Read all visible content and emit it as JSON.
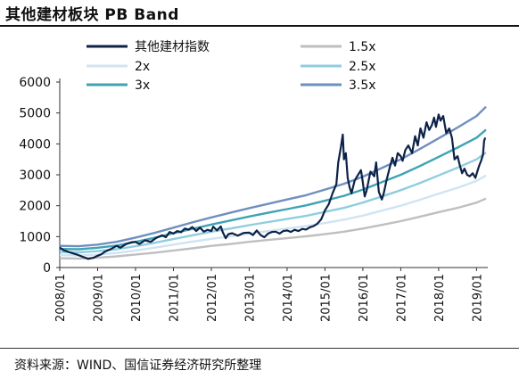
{
  "title": "其他建材板块 PB Band",
  "source": "资料来源：WIND、国信证券经济研究所整理",
  "chart_data": {
    "type": "line",
    "title": "其他建材板块 PB Band",
    "xlabel": "",
    "ylabel": "",
    "x_range": [
      2008.0,
      2019.25
    ],
    "ylim": [
      0,
      6000
    ],
    "yticks": [
      0,
      1000,
      2000,
      3000,
      4000,
      5000,
      6000
    ],
    "xticks": [
      "2008/01",
      "2009/01",
      "2010/01",
      "2011/01",
      "2012/01",
      "2013/01",
      "2014/01",
      "2015/01",
      "2016/01",
      "2017/01",
      "2018/01",
      "2019/01"
    ],
    "grid": false,
    "legend_position": "top",
    "series": [
      {
        "name": "其他建材指数",
        "color": "#0d2248",
        "width": 2.2,
        "points": [
          [
            2008.0,
            650
          ],
          [
            2008.1,
            560
          ],
          [
            2008.2,
            520
          ],
          [
            2008.3,
            480
          ],
          [
            2008.45,
            420
          ],
          [
            2008.6,
            350
          ],
          [
            2008.75,
            280
          ],
          [
            2008.9,
            320
          ],
          [
            2009.0,
            380
          ],
          [
            2009.1,
            430
          ],
          [
            2009.2,
            520
          ],
          [
            2009.35,
            600
          ],
          [
            2009.5,
            700
          ],
          [
            2009.6,
            640
          ],
          [
            2009.75,
            760
          ],
          [
            2009.9,
            820
          ],
          [
            2010.0,
            830
          ],
          [
            2010.1,
            760
          ],
          [
            2010.25,
            880
          ],
          [
            2010.4,
            830
          ],
          [
            2010.55,
            960
          ],
          [
            2010.7,
            1040
          ],
          [
            2010.8,
            980
          ],
          [
            2010.9,
            1150
          ],
          [
            2011.0,
            1100
          ],
          [
            2011.1,
            1180
          ],
          [
            2011.2,
            1140
          ],
          [
            2011.3,
            1260
          ],
          [
            2011.4,
            1230
          ],
          [
            2011.5,
            1310
          ],
          [
            2011.6,
            1180
          ],
          [
            2011.7,
            1290
          ],
          [
            2011.8,
            1160
          ],
          [
            2011.9,
            1220
          ],
          [
            2012.0,
            1180
          ],
          [
            2012.05,
            1320
          ],
          [
            2012.15,
            1200
          ],
          [
            2012.25,
            1330
          ],
          [
            2012.3,
            1150
          ],
          [
            2012.38,
            950
          ],
          [
            2012.45,
            1080
          ],
          [
            2012.55,
            1110
          ],
          [
            2012.7,
            1030
          ],
          [
            2012.85,
            1120
          ],
          [
            2013.0,
            1130
          ],
          [
            2013.1,
            1050
          ],
          [
            2013.2,
            1200
          ],
          [
            2013.3,
            1050
          ],
          [
            2013.4,
            980
          ],
          [
            2013.5,
            1100
          ],
          [
            2013.6,
            1150
          ],
          [
            2013.7,
            1160
          ],
          [
            2013.8,
            1100
          ],
          [
            2013.9,
            1180
          ],
          [
            2014.0,
            1200
          ],
          [
            2014.1,
            1150
          ],
          [
            2014.2,
            1220
          ],
          [
            2014.3,
            1180
          ],
          [
            2014.4,
            1250
          ],
          [
            2014.5,
            1230
          ],
          [
            2014.6,
            1300
          ],
          [
            2014.7,
            1340
          ],
          [
            2014.8,
            1420
          ],
          [
            2014.9,
            1560
          ],
          [
            2015.0,
            1850
          ],
          [
            2015.1,
            2050
          ],
          [
            2015.2,
            2400
          ],
          [
            2015.3,
            2700
          ],
          [
            2015.35,
            3400
          ],
          [
            2015.42,
            3900
          ],
          [
            2015.47,
            4300
          ],
          [
            2015.5,
            3500
          ],
          [
            2015.55,
            3700
          ],
          [
            2015.6,
            2900
          ],
          [
            2015.65,
            2600
          ],
          [
            2015.7,
            2400
          ],
          [
            2015.78,
            2800
          ],
          [
            2015.85,
            2950
          ],
          [
            2015.95,
            3150
          ],
          [
            2016.0,
            2750
          ],
          [
            2016.05,
            2300
          ],
          [
            2016.1,
            2500
          ],
          [
            2016.2,
            3100
          ],
          [
            2016.3,
            2950
          ],
          [
            2016.35,
            3400
          ],
          [
            2016.42,
            2450
          ],
          [
            2016.5,
            2200
          ],
          [
            2016.55,
            2400
          ],
          [
            2016.62,
            2800
          ],
          [
            2016.7,
            3200
          ],
          [
            2016.78,
            3550
          ],
          [
            2016.85,
            3300
          ],
          [
            2016.92,
            3700
          ],
          [
            2017.0,
            3600
          ],
          [
            2017.05,
            3450
          ],
          [
            2017.12,
            3800
          ],
          [
            2017.2,
            3950
          ],
          [
            2017.3,
            3700
          ],
          [
            2017.38,
            4250
          ],
          [
            2017.45,
            3950
          ],
          [
            2017.52,
            4500
          ],
          [
            2017.6,
            4200
          ],
          [
            2017.68,
            4700
          ],
          [
            2017.75,
            4450
          ],
          [
            2017.82,
            4600
          ],
          [
            2017.88,
            4850
          ],
          [
            2017.93,
            4550
          ],
          [
            2018.0,
            4950
          ],
          [
            2018.05,
            4750
          ],
          [
            2018.12,
            4900
          ],
          [
            2018.2,
            4350
          ],
          [
            2018.28,
            4500
          ],
          [
            2018.35,
            4200
          ],
          [
            2018.42,
            3500
          ],
          [
            2018.5,
            3600
          ],
          [
            2018.56,
            3300
          ],
          [
            2018.62,
            3050
          ],
          [
            2018.68,
            3200
          ],
          [
            2018.75,
            3000
          ],
          [
            2018.82,
            2950
          ],
          [
            2018.9,
            3050
          ],
          [
            2018.97,
            2900
          ],
          [
            2019.02,
            3100
          ],
          [
            2019.07,
            3300
          ],
          [
            2019.12,
            3450
          ],
          [
            2019.17,
            3650
          ],
          [
            2019.2,
            4100
          ],
          [
            2019.23,
            4200
          ]
        ]
      },
      {
        "name": "1.5x",
        "color": "#bfbfbf",
        "width": 2.4,
        "points": [
          [
            2008.0,
            300
          ],
          [
            2008.5,
            290
          ],
          [
            2009.0,
            320
          ],
          [
            2009.5,
            360
          ],
          [
            2010.0,
            420
          ],
          [
            2010.5,
            480
          ],
          [
            2011.0,
            550
          ],
          [
            2011.5,
            620
          ],
          [
            2012.0,
            700
          ],
          [
            2012.5,
            760
          ],
          [
            2013.0,
            830
          ],
          [
            2013.5,
            890
          ],
          [
            2014.0,
            950
          ],
          [
            2014.5,
            1010
          ],
          [
            2015.0,
            1080
          ],
          [
            2015.5,
            1160
          ],
          [
            2016.0,
            1260
          ],
          [
            2016.5,
            1380
          ],
          [
            2017.0,
            1500
          ],
          [
            2017.5,
            1640
          ],
          [
            2018.0,
            1790
          ],
          [
            2018.5,
            1930
          ],
          [
            2019.0,
            2100
          ],
          [
            2019.25,
            2230
          ]
        ]
      },
      {
        "name": "2x",
        "color": "#d0e4f3",
        "width": 2.4,
        "points": [
          [
            2008.0,
            400
          ],
          [
            2008.5,
            390
          ],
          [
            2009.0,
            420
          ],
          [
            2009.5,
            470
          ],
          [
            2010.0,
            550
          ],
          [
            2010.5,
            640
          ],
          [
            2011.0,
            740
          ],
          [
            2011.5,
            840
          ],
          [
            2012.0,
            930
          ],
          [
            2012.5,
            1010
          ],
          [
            2013.0,
            1100
          ],
          [
            2013.5,
            1180
          ],
          [
            2014.0,
            1260
          ],
          [
            2014.5,
            1340
          ],
          [
            2015.0,
            1440
          ],
          [
            2015.5,
            1550
          ],
          [
            2016.0,
            1680
          ],
          [
            2016.5,
            1840
          ],
          [
            2017.0,
            2000
          ],
          [
            2017.5,
            2190
          ],
          [
            2018.0,
            2390
          ],
          [
            2018.5,
            2580
          ],
          [
            2019.0,
            2800
          ],
          [
            2019.25,
            2980
          ]
        ]
      },
      {
        "name": "2.5x",
        "color": "#8fcde0",
        "width": 2.4,
        "points": [
          [
            2008.0,
            500
          ],
          [
            2008.5,
            490
          ],
          [
            2009.0,
            530
          ],
          [
            2009.5,
            590
          ],
          [
            2010.0,
            690
          ],
          [
            2010.5,
            800
          ],
          [
            2011.0,
            920
          ],
          [
            2011.5,
            1040
          ],
          [
            2012.0,
            1160
          ],
          [
            2012.5,
            1260
          ],
          [
            2013.0,
            1370
          ],
          [
            2013.5,
            1470
          ],
          [
            2014.0,
            1570
          ],
          [
            2014.5,
            1670
          ],
          [
            2015.0,
            1800
          ],
          [
            2015.5,
            1930
          ],
          [
            2016.0,
            2100
          ],
          [
            2016.5,
            2300
          ],
          [
            2017.0,
            2500
          ],
          [
            2017.5,
            2730
          ],
          [
            2018.0,
            2980
          ],
          [
            2018.5,
            3230
          ],
          [
            2019.0,
            3500
          ],
          [
            2019.25,
            3720
          ]
        ]
      },
      {
        "name": "3x",
        "color": "#3fa3b3",
        "width": 2.4,
        "points": [
          [
            2008.0,
            600
          ],
          [
            2008.5,
            590
          ],
          [
            2009.0,
            640
          ],
          [
            2009.5,
            710
          ],
          [
            2010.0,
            830
          ],
          [
            2010.5,
            960
          ],
          [
            2011.0,
            1110
          ],
          [
            2011.5,
            1250
          ],
          [
            2012.0,
            1390
          ],
          [
            2012.5,
            1520
          ],
          [
            2013.0,
            1650
          ],
          [
            2013.5,
            1770
          ],
          [
            2014.0,
            1890
          ],
          [
            2014.5,
            2010
          ],
          [
            2015.0,
            2160
          ],
          [
            2015.5,
            2320
          ],
          [
            2016.0,
            2520
          ],
          [
            2016.5,
            2760
          ],
          [
            2017.0,
            3000
          ],
          [
            2017.5,
            3280
          ],
          [
            2018.0,
            3580
          ],
          [
            2018.5,
            3880
          ],
          [
            2019.0,
            4200
          ],
          [
            2019.25,
            4460
          ]
        ]
      },
      {
        "name": "3.5x",
        "color": "#6f8fc0",
        "width": 2.4,
        "points": [
          [
            2008.0,
            700
          ],
          [
            2008.5,
            690
          ],
          [
            2009.0,
            740
          ],
          [
            2009.5,
            830
          ],
          [
            2010.0,
            970
          ],
          [
            2010.5,
            1120
          ],
          [
            2011.0,
            1290
          ],
          [
            2011.5,
            1460
          ],
          [
            2012.0,
            1620
          ],
          [
            2012.5,
            1770
          ],
          [
            2013.0,
            1920
          ],
          [
            2013.5,
            2060
          ],
          [
            2014.0,
            2200
          ],
          [
            2014.5,
            2340
          ],
          [
            2015.0,
            2520
          ],
          [
            2015.5,
            2710
          ],
          [
            2016.0,
            2940
          ],
          [
            2016.5,
            3220
          ],
          [
            2017.0,
            3500
          ],
          [
            2017.5,
            3830
          ],
          [
            2018.0,
            4180
          ],
          [
            2018.5,
            4530
          ],
          [
            2019.0,
            4900
          ],
          [
            2019.25,
            5200
          ]
        ]
      }
    ]
  }
}
